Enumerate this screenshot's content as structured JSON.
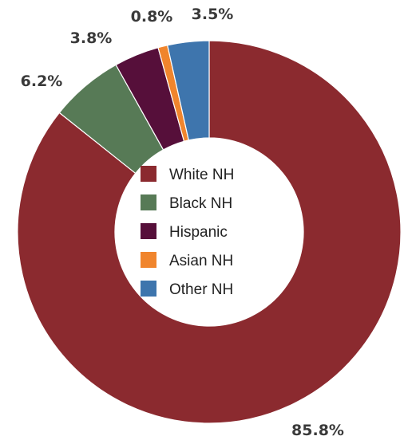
{
  "chart_data": {
    "type": "pie",
    "variant": "donut",
    "title": "",
    "series": [
      {
        "name": "White NH",
        "value": 85.8,
        "label": "85.8%",
        "color": "#8B2A2F"
      },
      {
        "name": "Black NH",
        "value": 6.2,
        "label": "6.2%",
        "color": "#577A56"
      },
      {
        "name": "Hispanic",
        "value": 3.8,
        "label": "3.8%",
        "color": "#560F3A"
      },
      {
        "name": "Asian NH",
        "value": 0.8,
        "label": "0.8%",
        "color": "#F0852D"
      },
      {
        "name": "Other NH",
        "value": 3.5,
        "label": "3.5%",
        "color": "#3E75AD"
      }
    ],
    "legend_position": "center"
  }
}
